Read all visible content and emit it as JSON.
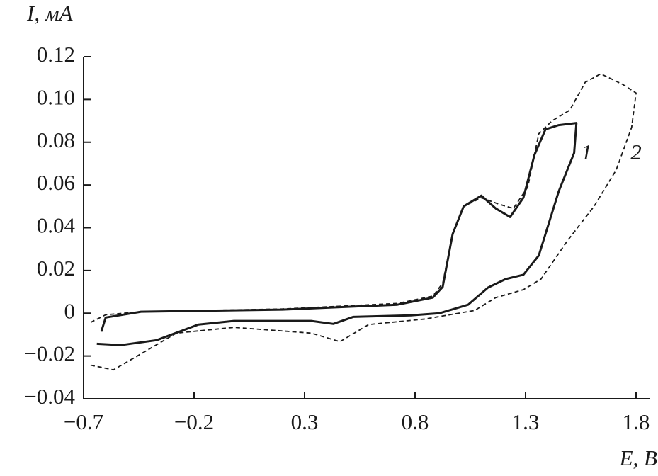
{
  "chart_data": {
    "type": "line",
    "y_label": "I, мА",
    "x_label": "E, В",
    "xlim": [
      -0.7,
      1.8
    ],
    "ylim": [
      -0.04,
      0.12
    ],
    "xticks": [
      {
        "value": -0.7,
        "label": "−0.7"
      },
      {
        "value": -0.2,
        "label": "−0.2"
      },
      0.3,
      0.8,
      1.3,
      1.8
    ],
    "yticks": [
      {
        "value": -0.04,
        "label": "−0.04"
      },
      {
        "value": -0.02,
        "label": "−0.02"
      },
      0,
      0.02,
      0.04,
      0.06,
      0.08,
      {
        "value": 0.1,
        "label": "0.10"
      },
      0.12
    ],
    "grid": false,
    "series": [
      {
        "name": "1",
        "color": "#1a1a1a",
        "dashed": false,
        "x": [
          -0.62,
          -0.6,
          -0.44,
          0.2,
          0.72,
          0.88,
          0.925,
          0.97,
          1.02,
          1.1,
          1.165,
          1.23,
          1.29,
          1.34,
          1.39,
          1.45,
          1.53,
          1.52,
          1.45,
          1.36,
          1.29,
          1.21,
          1.13,
          1.04,
          0.91,
          0.78,
          0.52,
          0.43,
          0.33,
          -0.02,
          -0.18,
          -0.37,
          -0.53,
          -0.64
        ],
        "values": [
          -0.0086,
          -0.002,
          0.0007,
          0.0017,
          0.004,
          0.0073,
          0.0123,
          0.037,
          0.05,
          0.055,
          0.049,
          0.045,
          0.054,
          0.074,
          0.086,
          0.088,
          0.089,
          0.075,
          0.057,
          0.027,
          0.018,
          0.016,
          0.012,
          0.004,
          0,
          -0.001,
          -0.0017,
          -0.005,
          -0.0036,
          -0.0036,
          -0.0053,
          -0.0126,
          -0.0149,
          -0.0143
        ]
      },
      {
        "name": "2",
        "color": "#1a1a1a",
        "dashed": true,
        "x": [
          -0.668,
          -0.6,
          -0.44,
          0.2,
          0.72,
          0.88,
          0.925,
          0.97,
          1.02,
          1.1,
          1.18,
          1.245,
          1.31,
          1.36,
          1.42,
          1.5,
          1.57,
          1.64,
          1.74,
          1.8,
          1.78,
          1.71,
          1.61,
          1.49,
          1.37,
          1.29,
          1.165,
          1.07,
          0.845,
          0.59,
          0.46,
          0.33,
          -0.02,
          -0.28,
          -0.44,
          -0.565,
          -0.68
        ],
        "values": [
          -0.0043,
          -0.0007,
          0.0007,
          0.002,
          0.0046,
          0.008,
          0.014,
          0.037,
          0.05,
          0.054,
          0.051,
          0.049,
          0.059,
          0.084,
          0.09,
          0.095,
          0.108,
          0.112,
          0.107,
          0.103,
          0.087,
          0.067,
          0.05,
          0.034,
          0.016,
          0.011,
          0.0073,
          0.0013,
          -0.0027,
          -0.0053,
          -0.0133,
          -0.0093,
          -0.0066,
          -0.0093,
          -0.019,
          -0.0265,
          -0.024
        ]
      }
    ]
  }
}
